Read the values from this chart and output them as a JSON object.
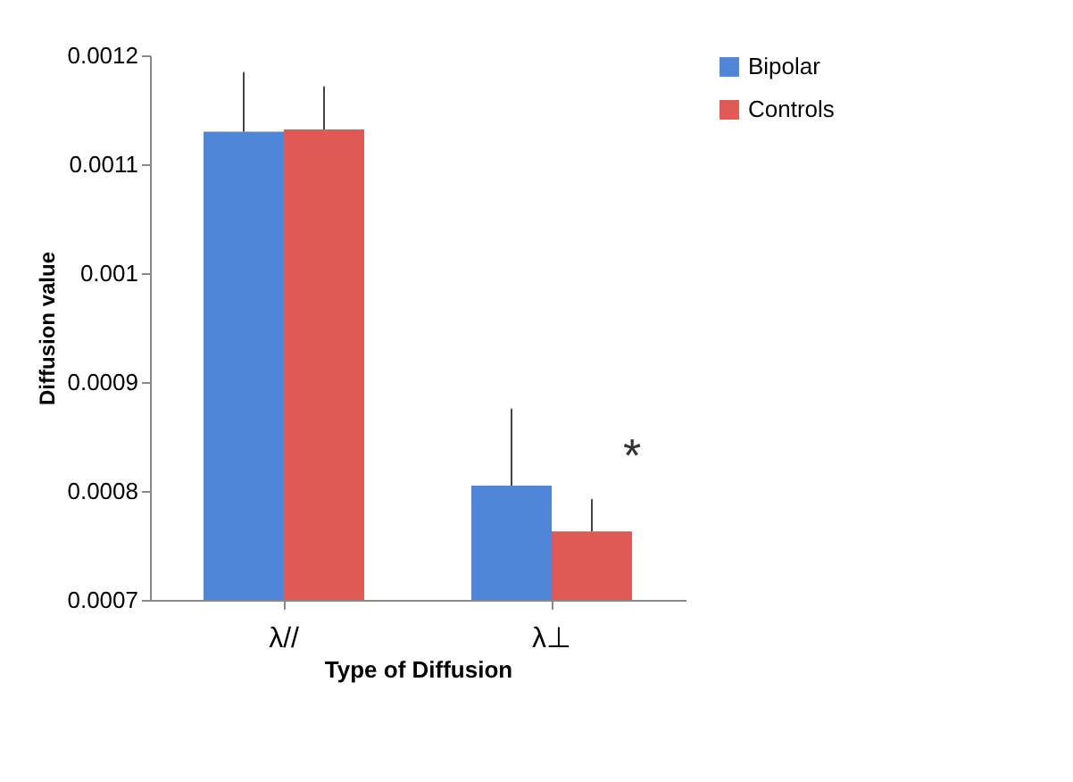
{
  "chart_data": {
    "type": "bar",
    "xlabel": "Type of Diffusion",
    "ylabel": "Diffusion value",
    "categories": [
      "λ//",
      "λ⊥"
    ],
    "series": [
      {
        "name": "Bipolar",
        "color": "#4f86d8",
        "values": [
          0.00113,
          0.000805
        ],
        "errors": [
          [
            0.00113,
            0.001184
          ],
          [
            0.000805,
            0.000875
          ]
        ]
      },
      {
        "name": "Controls",
        "color": "#e05a55",
        "values": [
          0.001132,
          0.000763
        ],
        "errors": [
          [
            0.001132,
            0.001171
          ],
          [
            0.000763,
            0.000792
          ]
        ]
      }
    ],
    "ylim": [
      0.0007,
      0.0012
    ],
    "yticks": [
      0.0007,
      0.0008,
      0.0009,
      0.001,
      0.0011,
      0.0012
    ],
    "annotations": [
      "*"
    ],
    "grid": false,
    "legend": "right"
  }
}
